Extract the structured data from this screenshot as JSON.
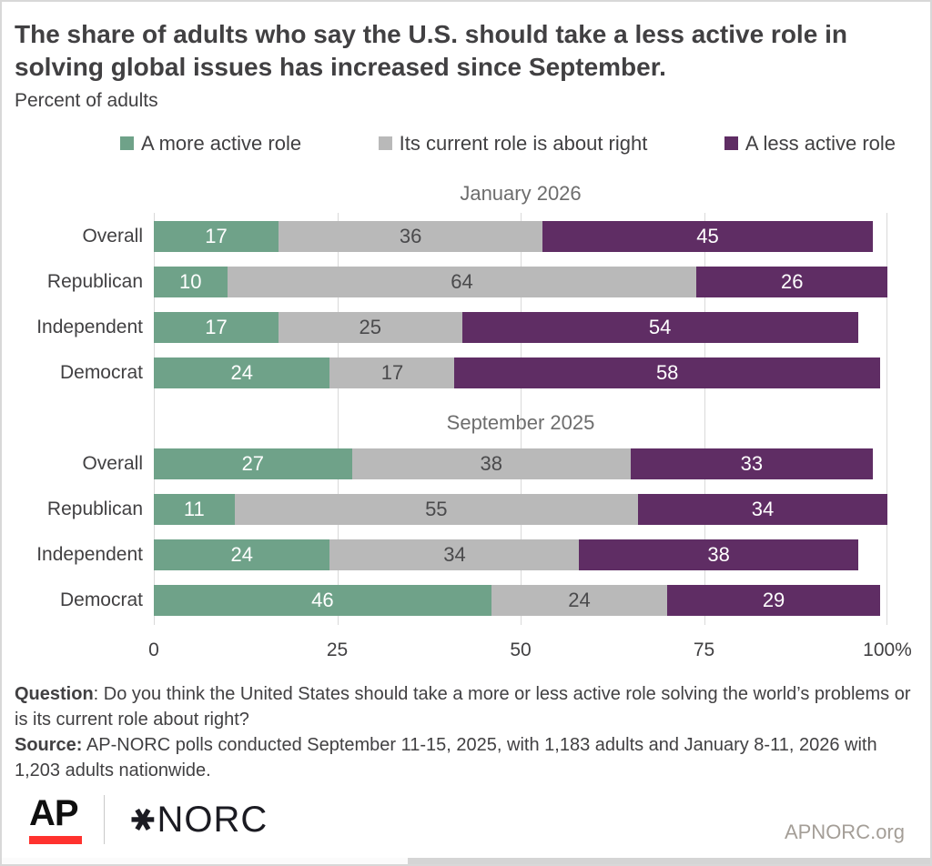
{
  "header": {
    "title_line1": "The share of adults who say the U.S. should take a less active role in",
    "title_line2": "solving global issues has increased since September.",
    "subtitle": "Percent of adults"
  },
  "chart_data": {
    "type": "bar",
    "orientation": "horizontal",
    "stacked": true,
    "axis_max": 100,
    "grid": true,
    "legend": [
      {
        "label": "A more active role",
        "key": "more"
      },
      {
        "label": "Its current role is about right",
        "key": "current"
      },
      {
        "label": "A less active role",
        "key": "less"
      }
    ],
    "colors": {
      "more": "#6FA289",
      "current": "#B9B9B9",
      "less": "#5F2D64"
    },
    "groups": [
      {
        "title": "January 2026",
        "rows": [
          {
            "label": "Overall",
            "values": {
              "more": 17,
              "current": 36,
              "less": 45
            }
          },
          {
            "label": "Republican",
            "values": {
              "more": 10,
              "current": 64,
              "less": 26
            }
          },
          {
            "label": "Independent",
            "values": {
              "more": 17,
              "current": 25,
              "less": 54
            }
          },
          {
            "label": "Democrat",
            "values": {
              "more": 24,
              "current": 17,
              "less": 58
            }
          }
        ]
      },
      {
        "title": "September 2025",
        "rows": [
          {
            "label": "Overall",
            "values": {
              "more": 27,
              "current": 38,
              "less": 33
            }
          },
          {
            "label": "Republican",
            "values": {
              "more": 11,
              "current": 55,
              "less": 34
            }
          },
          {
            "label": "Independent",
            "values": {
              "more": 24,
              "current": 34,
              "less": 38
            }
          },
          {
            "label": "Democrat",
            "values": {
              "more": 46,
              "current": 24,
              "less": 29
            }
          }
        ]
      }
    ],
    "x_axis": {
      "ticks": [
        "0",
        "25",
        "50",
        "75",
        "100%"
      ]
    }
  },
  "footnote": {
    "question_label": "Question",
    "question_text": ": Do you think the United States should take a more or less active role solving the world’s problems or is its current role about right?",
    "source_label": "Source:",
    "source_text": " AP-NORC polls conducted September 11-15, 2025, with 1,183 adults and January 8-11, 2026 with 1,203 adults nationwide."
  },
  "footer": {
    "ap_logo_text": "AP",
    "ap_red": "#FF322E",
    "norc_star": "✱",
    "norc_logo_text": "NORC",
    "site_link": "APNORC.org"
  }
}
